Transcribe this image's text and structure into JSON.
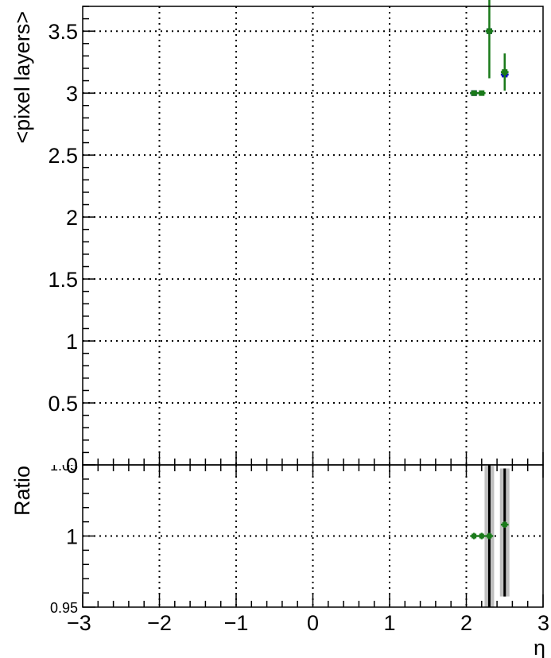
{
  "chart_data": [
    {
      "type": "scatter",
      "panel": "top",
      "title": "",
      "xlabel": "",
      "ylabel": "<pixel layers>",
      "xlim": [
        -3,
        3
      ],
      "ylim": [
        0,
        3.7
      ],
      "grid": true,
      "x_ticks": [
        "−3",
        "−2",
        "−1",
        "0",
        "1",
        "2",
        "3"
      ],
      "y_ticks": [
        {
          "v": 0,
          "label": "0"
        },
        {
          "v": 0.5,
          "label": "0.5"
        },
        {
          "v": 1,
          "label": "1"
        },
        {
          "v": 1.5,
          "label": "1.5"
        },
        {
          "v": 2,
          "label": "2"
        },
        {
          "v": 2.5,
          "label": "2.5"
        },
        {
          "v": 3,
          "label": "3"
        },
        {
          "v": 3.5,
          "label": "3.5"
        }
      ],
      "series": [
        {
          "color": "#000000",
          "points": [
            {
              "x": 2.1,
              "y": 3.0,
              "xerr": 0.05,
              "yerr": 0.0
            },
            {
              "x": 2.3,
              "y": 3.5,
              "xerr": 0.05,
              "yerr": 0.0
            },
            {
              "x": 2.5,
              "y": 3.15,
              "xerr": 0.05,
              "yerr": 0.0
            }
          ]
        },
        {
          "color": "#0000cc",
          "points": [
            {
              "x": 2.1,
              "y": 3.0,
              "xerr": 0.05,
              "yerr": 0.0
            },
            {
              "x": 2.3,
              "y": 3.5,
              "xerr": 0.05,
              "yerr": 0.0
            },
            {
              "x": 2.5,
              "y": 3.15,
              "xerr": 0.05,
              "yerr": 0.0
            }
          ]
        },
        {
          "color": "#1a7a1a",
          "points": [
            {
              "x": 2.1,
              "y": 3.0,
              "xerr": 0.05,
              "yerr": 0.0
            },
            {
              "x": 2.2,
              "y": 3.0,
              "xerr": 0.05,
              "yerr": 0.0
            },
            {
              "x": 2.3,
              "y": 3.5,
              "xerr": 0.05,
              "yerr": 0.38
            },
            {
              "x": 2.5,
              "y": 3.17,
              "xerr": 0.05,
              "yerr": 0.15
            }
          ]
        }
      ]
    },
    {
      "type": "scatter",
      "panel": "ratio",
      "title": "",
      "xlabel": "η",
      "ylabel": "Ratio",
      "xlim": [
        -3,
        3
      ],
      "ylim": [
        0.95,
        1.05
      ],
      "grid": true,
      "x_ticks": [
        "−3",
        "−2",
        "−1",
        "0",
        "1",
        "2",
        "3"
      ],
      "y_ticks": [
        {
          "v": 0.95,
          "label": "0.95"
        },
        {
          "v": 1.0,
          "label": "1"
        },
        {
          "v": 1.05,
          "label": "1.05"
        }
      ],
      "bands": [
        {
          "x": 2.3,
          "low": 0.95,
          "high": 1.05,
          "color": "#c0c0c0"
        },
        {
          "x": 2.5,
          "low": 0.9575,
          "high": 1.0475,
          "color": "#c0c0c0"
        }
      ],
      "ref_errors": [
        {
          "x": 2.3,
          "low": 0.95,
          "high": 1.05
        },
        {
          "x": 2.5,
          "low": 0.9575,
          "high": 1.0475
        }
      ],
      "series": [
        {
          "color": "#1a7a1a",
          "points": [
            {
              "x": 2.1,
              "y": 1.0
            },
            {
              "x": 2.2,
              "y": 1.0
            },
            {
              "x": 2.3,
              "y": 1.0
            },
            {
              "x": 2.5,
              "y": 1.008
            }
          ]
        }
      ]
    }
  ]
}
